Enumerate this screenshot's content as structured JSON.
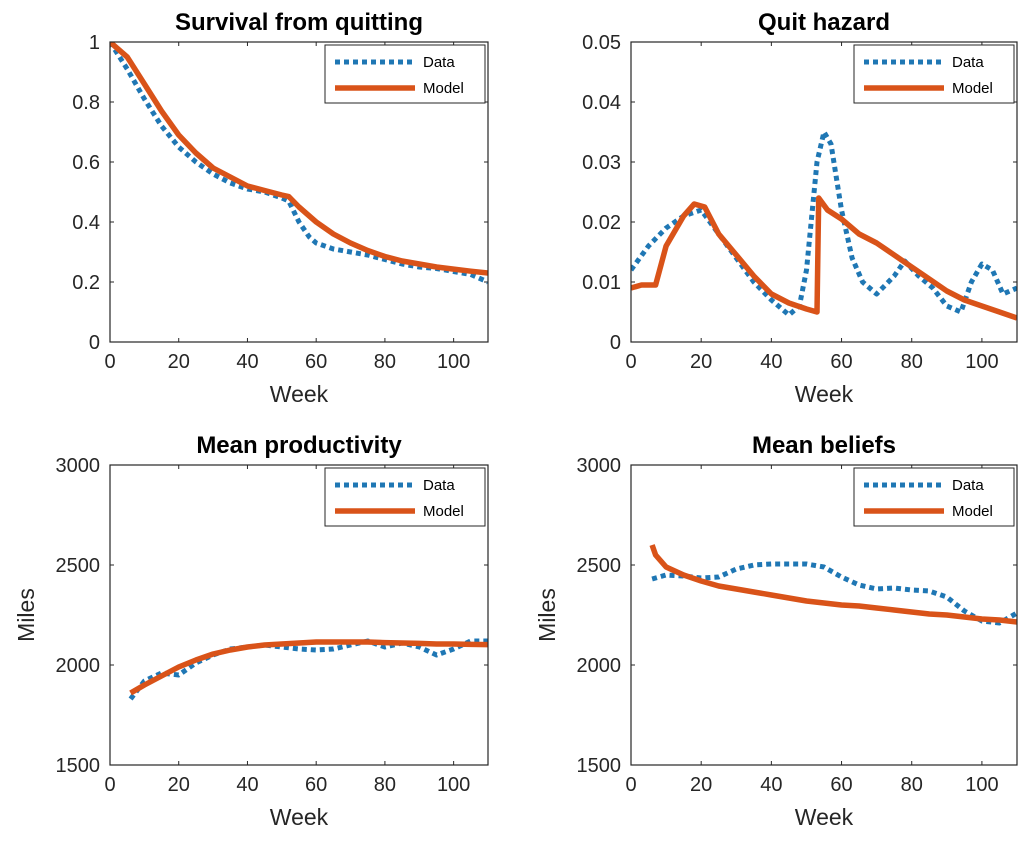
{
  "figure": {
    "background": "#ffffff"
  },
  "colors": {
    "data": "#1f77b4",
    "model": "#d95319",
    "axis": "#262626"
  },
  "chart_data": [
    {
      "type": "line",
      "title": "Survival from quitting",
      "xlabel": "Week",
      "ylabel": "",
      "xlim": [
        0,
        110
      ],
      "ylim": [
        0,
        1
      ],
      "xticks": [
        0,
        20,
        40,
        60,
        80,
        100
      ],
      "yticks": [
        0,
        0.2,
        0.4,
        0.6,
        0.8,
        1
      ],
      "ytick_labels": [
        "0",
        "0.2",
        "0.4",
        "0.6",
        "0.8",
        "1"
      ],
      "grid": false,
      "legend": "top-right",
      "series": [
        {
          "name": "Data",
          "style": "dotted",
          "x": [
            0,
            5,
            10,
            15,
            20,
            25,
            30,
            35,
            40,
            45,
            50,
            52,
            55,
            58,
            60,
            65,
            70,
            75,
            80,
            85,
            90,
            95,
            100,
            105,
            110
          ],
          "y": [
            1.0,
            0.91,
            0.81,
            0.72,
            0.65,
            0.6,
            0.56,
            0.53,
            0.51,
            0.5,
            0.48,
            0.47,
            0.4,
            0.35,
            0.33,
            0.31,
            0.3,
            0.29,
            0.275,
            0.26,
            0.25,
            0.245,
            0.235,
            0.225,
            0.2
          ]
        },
        {
          "name": "Model",
          "style": "solid",
          "x": [
            0,
            5,
            10,
            15,
            20,
            25,
            30,
            35,
            40,
            45,
            50,
            52,
            55,
            60,
            65,
            70,
            75,
            80,
            85,
            90,
            95,
            100,
            105,
            110
          ],
          "y": [
            1.0,
            0.95,
            0.86,
            0.77,
            0.69,
            0.63,
            0.58,
            0.55,
            0.52,
            0.505,
            0.49,
            0.485,
            0.45,
            0.4,
            0.36,
            0.33,
            0.305,
            0.285,
            0.27,
            0.26,
            0.25,
            0.243,
            0.236,
            0.23
          ]
        }
      ]
    },
    {
      "type": "line",
      "title": "Quit hazard",
      "xlabel": "Week",
      "ylabel": "",
      "xlim": [
        0,
        110
      ],
      "ylim": [
        0,
        0.05
      ],
      "xticks": [
        0,
        20,
        40,
        60,
        80,
        100
      ],
      "yticks": [
        0,
        0.01,
        0.02,
        0.03,
        0.04,
        0.05
      ],
      "ytick_labels": [
        "0",
        "0.01",
        "0.02",
        "0.03",
        "0.04",
        "0.05"
      ],
      "grid": false,
      "legend": "top-right",
      "series": [
        {
          "name": "Data",
          "style": "dotted",
          "x": [
            0,
            5,
            10,
            15,
            20,
            25,
            30,
            35,
            40,
            45,
            48,
            50,
            53,
            55,
            57,
            60,
            63,
            66,
            70,
            75,
            78,
            82,
            86,
            90,
            94,
            97,
            100,
            103,
            106,
            110
          ],
          "y": [
            0.012,
            0.016,
            0.019,
            0.021,
            0.022,
            0.018,
            0.014,
            0.01,
            0.007,
            0.0045,
            0.006,
            0.012,
            0.03,
            0.035,
            0.033,
            0.022,
            0.014,
            0.01,
            0.008,
            0.011,
            0.0135,
            0.011,
            0.009,
            0.006,
            0.005,
            0.01,
            0.013,
            0.012,
            0.008,
            0.009
          ]
        },
        {
          "name": "Model",
          "style": "solid",
          "x": [
            0,
            3,
            7,
            10,
            15,
            18,
            21,
            25,
            30,
            35,
            40,
            45,
            50,
            53,
            53.5,
            56,
            60,
            65,
            70,
            75,
            80,
            85,
            90,
            95,
            100,
            105,
            110
          ],
          "y": [
            0.009,
            0.0095,
            0.0095,
            0.016,
            0.021,
            0.023,
            0.0225,
            0.018,
            0.0145,
            0.011,
            0.008,
            0.0065,
            0.0055,
            0.005,
            0.024,
            0.022,
            0.0205,
            0.018,
            0.0165,
            0.0145,
            0.0125,
            0.0105,
            0.0085,
            0.007,
            0.006,
            0.005,
            0.004
          ]
        }
      ]
    },
    {
      "type": "line",
      "title": "Mean productivity",
      "xlabel": "Week",
      "ylabel": "Miles",
      "xlim": [
        0,
        110
      ],
      "ylim": [
        1500,
        3000
      ],
      "xticks": [
        0,
        20,
        40,
        60,
        80,
        100
      ],
      "yticks": [
        1500,
        2000,
        2500,
        3000
      ],
      "ytick_labels": [
        "1500",
        "2000",
        "2500",
        "3000"
      ],
      "grid": false,
      "legend": "top-right",
      "series": [
        {
          "name": "Data",
          "style": "dotted",
          "x": [
            6,
            10,
            15,
            20,
            25,
            30,
            35,
            40,
            45,
            50,
            55,
            60,
            65,
            70,
            75,
            80,
            85,
            90,
            95,
            100,
            105,
            110
          ],
          "y": [
            1830,
            1920,
            1960,
            1950,
            2010,
            2050,
            2080,
            2090,
            2100,
            2090,
            2080,
            2075,
            2080,
            2100,
            2120,
            2090,
            2110,
            2090,
            2050,
            2080,
            2120,
            2120
          ]
        },
        {
          "name": "Model",
          "style": "solid",
          "x": [
            6,
            10,
            15,
            20,
            25,
            30,
            35,
            40,
            45,
            50,
            55,
            60,
            65,
            70,
            75,
            80,
            85,
            90,
            95,
            100,
            105,
            110
          ],
          "y": [
            1860,
            1900,
            1945,
            1990,
            2025,
            2055,
            2075,
            2090,
            2100,
            2105,
            2110,
            2115,
            2115,
            2115,
            2115,
            2112,
            2110,
            2108,
            2105,
            2105,
            2103,
            2102
          ]
        }
      ]
    },
    {
      "type": "line",
      "title": "Mean beliefs",
      "xlabel": "Week",
      "ylabel": "Miles",
      "xlim": [
        0,
        110
      ],
      "ylim": [
        1500,
        3000
      ],
      "xticks": [
        0,
        20,
        40,
        60,
        80,
        100
      ],
      "yticks": [
        1500,
        2000,
        2500,
        3000
      ],
      "ytick_labels": [
        "1500",
        "2000",
        "2500",
        "3000"
      ],
      "grid": false,
      "legend": "top-right",
      "series": [
        {
          "name": "Data",
          "style": "dotted",
          "x": [
            6,
            10,
            15,
            20,
            25,
            30,
            35,
            40,
            45,
            50,
            55,
            60,
            65,
            70,
            75,
            80,
            85,
            90,
            95,
            100,
            105,
            110
          ],
          "y": [
            2430,
            2450,
            2445,
            2435,
            2440,
            2480,
            2500,
            2505,
            2505,
            2505,
            2490,
            2440,
            2400,
            2380,
            2385,
            2375,
            2370,
            2340,
            2270,
            2220,
            2210,
            2260
          ]
        },
        {
          "name": "Model",
          "style": "solid",
          "x": [
            6,
            7,
            10,
            15,
            20,
            25,
            30,
            35,
            40,
            45,
            50,
            55,
            60,
            65,
            70,
            75,
            80,
            85,
            90,
            95,
            100,
            105,
            110
          ],
          "y": [
            2600,
            2550,
            2490,
            2450,
            2420,
            2395,
            2380,
            2365,
            2350,
            2335,
            2320,
            2310,
            2300,
            2295,
            2285,
            2275,
            2265,
            2255,
            2250,
            2240,
            2230,
            2225,
            2215
          ]
        }
      ]
    }
  ]
}
